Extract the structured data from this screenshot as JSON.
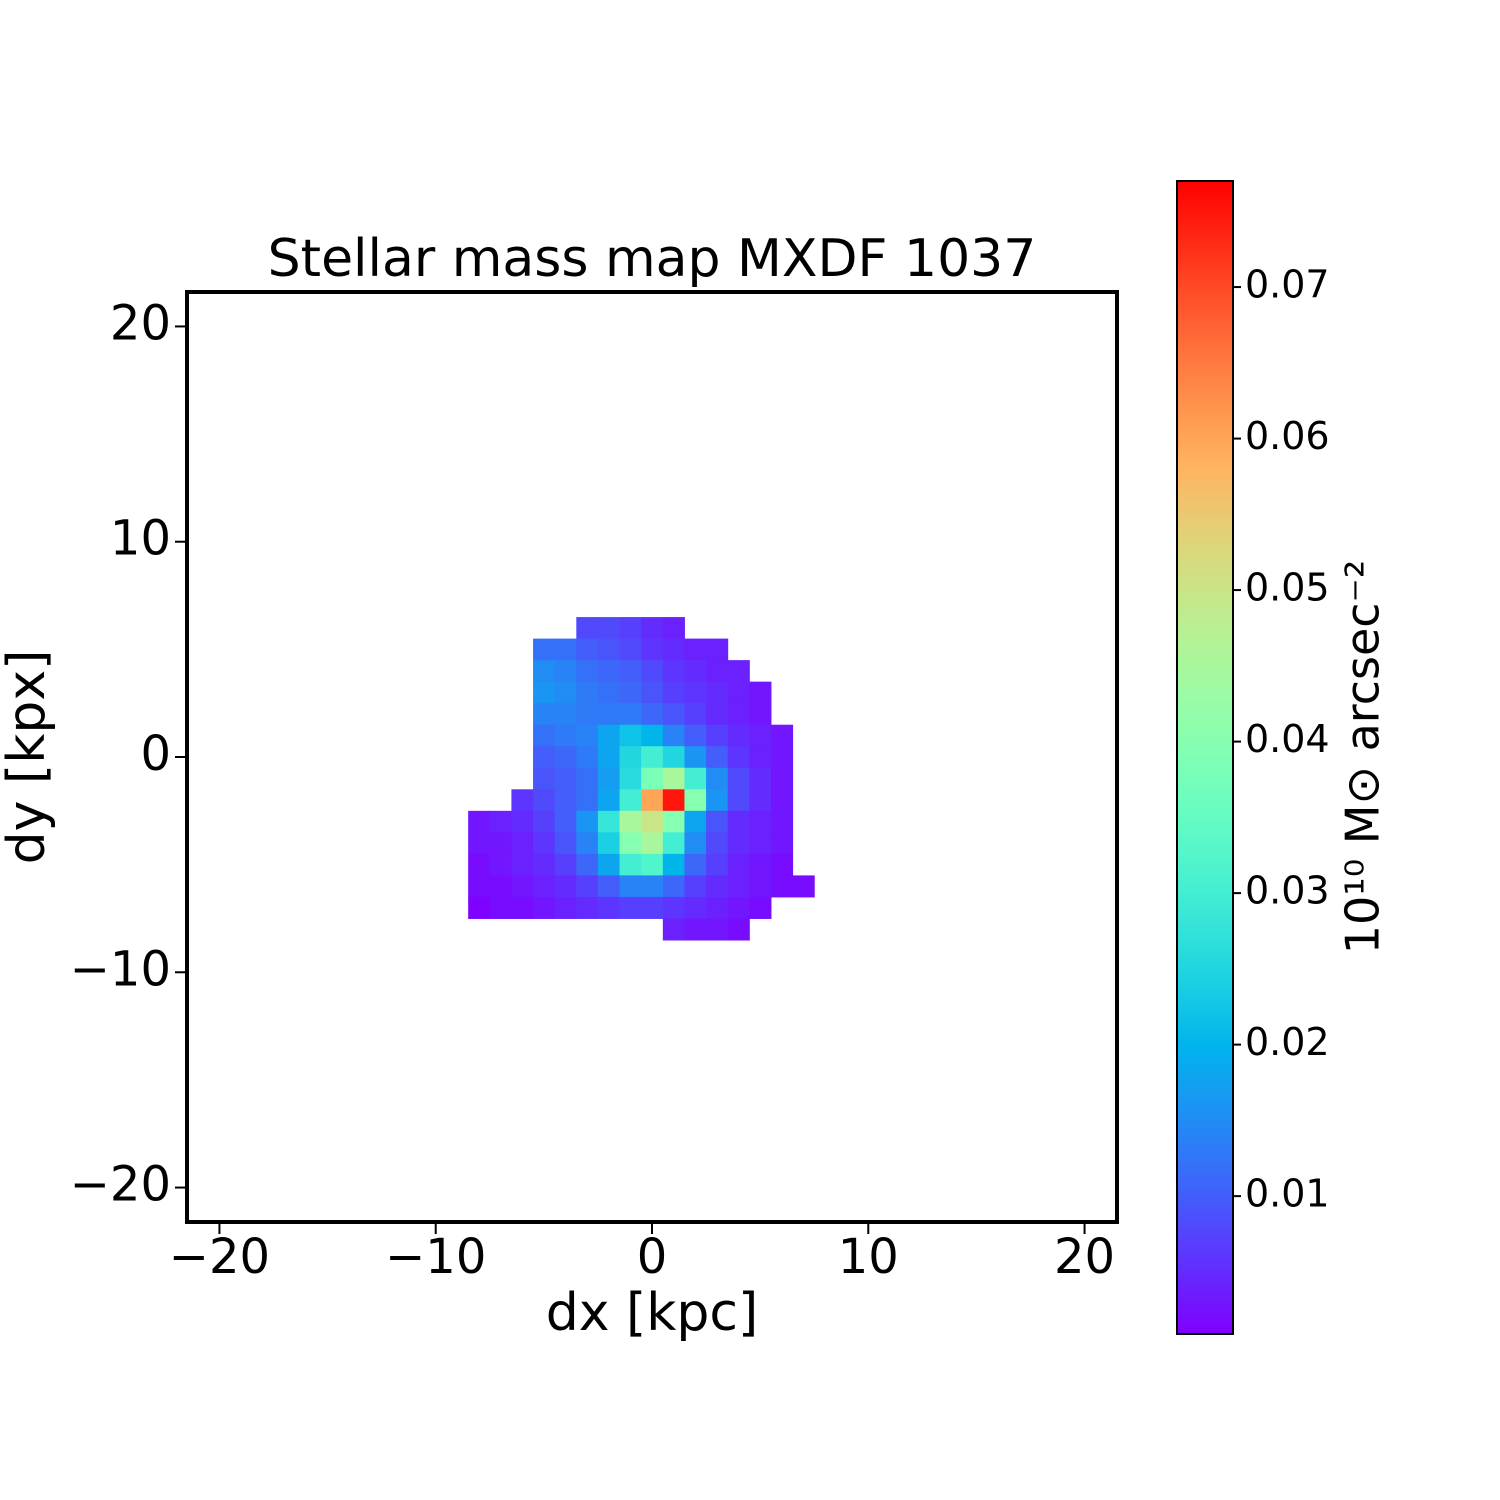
{
  "chart_data": {
    "type": "heatmap",
    "title": "Stellar mass map MXDF 1037",
    "x_label": "dx [kpc]",
    "y_label": "dy [kpx]",
    "colorbar_label": "10¹⁰ M⊙ arcsec⁻²",
    "colormap": "rainbow",
    "xlim": [
      -21.5,
      21.5
    ],
    "ylim": [
      -21.6,
      21.6
    ],
    "xticks": [
      {
        "value": -20,
        "label": "−20"
      },
      {
        "value": -10,
        "label": "−10"
      },
      0,
      10,
      20
    ],
    "yticks": [
      {
        "value": -20,
        "label": "−20"
      },
      {
        "value": -10,
        "label": "−10"
      },
      0,
      10,
      20
    ],
    "clim": [
      0.0009,
      0.077
    ],
    "cticks": [
      0.01,
      0.02,
      0.03,
      0.04,
      0.05,
      0.06,
      0.07
    ],
    "x": [
      -8,
      -7,
      -6,
      -5,
      -4,
      -3,
      -2,
      -1,
      0,
      1,
      2,
      3,
      4,
      5,
      6,
      7
    ],
    "y": [
      6,
      5,
      4,
      3,
      2,
      1,
      0,
      -1,
      -2,
      -3,
      -4,
      -5,
      -6,
      -7,
      -8
    ],
    "z": [
      [
        null,
        null,
        null,
        null,
        null,
        0.008,
        0.008,
        0.007,
        0.005,
        0.004,
        null,
        null,
        null,
        null,
        null,
        null
      ],
      [
        null,
        null,
        null,
        0.012,
        0.012,
        0.01,
        0.009,
        0.008,
        0.006,
        0.005,
        0.004,
        0.004,
        null,
        null,
        null,
        null
      ],
      [
        null,
        null,
        null,
        0.015,
        0.014,
        0.012,
        0.011,
        0.01,
        0.008,
        0.006,
        0.005,
        0.004,
        0.004,
        null,
        null,
        null
      ],
      [
        null,
        null,
        null,
        0.016,
        0.015,
        0.013,
        0.012,
        0.011,
        0.009,
        0.007,
        0.006,
        0.005,
        0.004,
        0.003,
        null,
        null
      ],
      [
        null,
        null,
        null,
        0.014,
        0.014,
        0.013,
        0.013,
        0.013,
        0.011,
        0.009,
        0.007,
        0.005,
        0.004,
        0.003,
        null,
        null
      ],
      [
        null,
        null,
        null,
        0.012,
        0.013,
        0.014,
        0.018,
        0.022,
        0.02,
        0.014,
        0.01,
        0.007,
        0.005,
        0.004,
        0.003,
        null
      ],
      [
        null,
        null,
        null,
        0.01,
        0.011,
        0.013,
        0.018,
        0.025,
        0.03,
        0.025,
        0.016,
        0.01,
        0.006,
        0.004,
        0.003,
        null
      ],
      [
        null,
        null,
        null,
        0.009,
        0.01,
        0.012,
        0.017,
        0.026,
        0.038,
        0.045,
        0.03,
        0.015,
        0.008,
        0.005,
        0.003,
        null
      ],
      [
        null,
        null,
        0.006,
        0.008,
        0.01,
        0.012,
        0.018,
        0.03,
        0.06,
        0.075,
        0.04,
        0.016,
        0.008,
        0.005,
        0.003,
        null
      ],
      [
        0.003,
        0.004,
        0.005,
        0.007,
        0.01,
        0.016,
        0.028,
        0.045,
        0.05,
        0.04,
        0.018,
        0.009,
        0.005,
        0.004,
        0.003,
        null
      ],
      [
        0.003,
        0.003,
        0.004,
        0.006,
        0.009,
        0.014,
        0.024,
        0.04,
        0.045,
        0.03,
        0.015,
        0.008,
        0.005,
        0.004,
        0.003,
        null
      ],
      [
        0.002,
        0.003,
        0.004,
        0.005,
        0.007,
        0.011,
        0.018,
        0.03,
        0.032,
        0.02,
        0.011,
        0.007,
        0.004,
        0.003,
        0.002,
        null
      ],
      [
        0.002,
        0.002,
        0.003,
        0.004,
        0.005,
        0.007,
        0.01,
        0.014,
        0.014,
        0.011,
        0.007,
        0.005,
        0.004,
        0.003,
        0.002,
        0.002
      ],
      [
        0.001,
        0.002,
        0.002,
        0.003,
        0.004,
        0.005,
        0.006,
        0.007,
        0.007,
        0.006,
        0.005,
        0.004,
        0.003,
        0.002,
        null,
        null
      ],
      [
        null,
        null,
        null,
        null,
        null,
        null,
        null,
        null,
        null,
        0.004,
        0.003,
        0.003,
        0.002,
        null,
        null,
        null
      ]
    ]
  }
}
